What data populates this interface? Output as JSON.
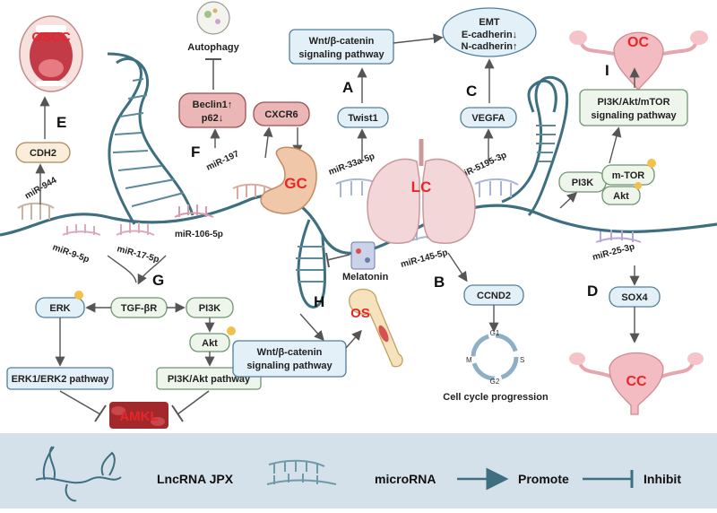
{
  "panels": {
    "A": "A",
    "B": "B",
    "C": "C",
    "D": "D",
    "E": "E",
    "F": "F",
    "G": "G",
    "H": "H",
    "I": "I"
  },
  "diseases": {
    "oscc": "OSCC",
    "gc": "GC",
    "lc": "LC",
    "oc": "OC",
    "os": "OS",
    "cc": "CC",
    "amkl": "AMKL"
  },
  "mirnas": {
    "mir944": "miR-944",
    "mir9": "miR-9-5p",
    "mir17": "miR-17-5p",
    "mir106": "miR-106-5p",
    "mir197": "miR-197",
    "mir33a": "miR-33a-5p",
    "mir5195": "miR-5195-3p",
    "mir145": "miR-145-5p",
    "mir25": "miR-25-3p"
  },
  "labels": {
    "autophagy": "Autophagy",
    "beclin": "Beclin1↑",
    "p62": "p62↓",
    "cxcr6": "CXCR6",
    "wnt_line1": "Wnt/β-catenin",
    "wnt_line2": "signaling pathway",
    "twist1": "Twist1",
    "emt": "EMT",
    "ecad": "E-cadherin↓",
    "ncad": "N-cadherin↑",
    "vegfa": "VEGFA",
    "pi3k_mtor_line1": "PI3K/Akt/mTOR",
    "pi3k_mtor_line2": "signaling pathway",
    "pi3k": "PI3K",
    "mtor": "m-TOR",
    "akt": "Akt",
    "cdh2": "CDH2",
    "tgfbr": "TGF-βR",
    "erk": "ERK",
    "erk_pathway": "ERK1/ERK2 pathway",
    "pi3k_akt_pathway": "PI3K/Akt pathway",
    "melatonin": "Melatonin",
    "ccnd2": "CCND2",
    "cell_cycle": "Cell cycle progression",
    "sox4": "SOX4",
    "p_mark": "P",
    "g1": "G1",
    "s": "S",
    "g2": "G2",
    "m": "M"
  },
  "legend": {
    "lncrna": "LncRNA JPX",
    "microrna": "microRNA",
    "promote": "Promote",
    "inhibit": "Inhibit"
  },
  "colors": {
    "strand": "#3d6f80",
    "legend_bg": "#d4e1ea",
    "disease_red": "#e8262a"
  }
}
